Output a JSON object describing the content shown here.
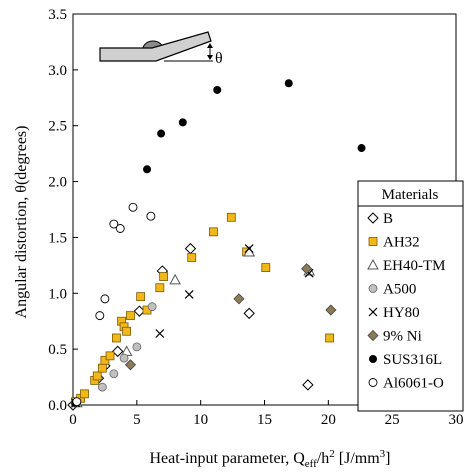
{
  "chart_data": {
    "type": "scatter",
    "title": "",
    "xlabel": {
      "main": "Heat-input parameter, Q",
      "sub": "eff",
      "mid": "/h",
      "sup": "2",
      "unit": " [J/mm",
      "unit_sup": "3",
      "unit_end": "]"
    },
    "ylabel": "Angular distortion, θ(degrees)",
    "xlim": [
      0,
      30
    ],
    "ylim": [
      0,
      3.5
    ],
    "xticks": [
      0,
      5,
      10,
      15,
      20,
      25,
      30
    ],
    "yticks": [
      0.0,
      0.5,
      1.0,
      1.5,
      2.0,
      2.5,
      3.0,
      3.5
    ],
    "xtick_labels": [
      "0",
      "5",
      "10",
      "15",
      "20",
      "25",
      "30"
    ],
    "ytick_labels": [
      "0.0",
      "0.5",
      "1.0",
      "1.5",
      "2.0",
      "2.5",
      "3.0",
      "3.5"
    ],
    "grid": false,
    "legend": {
      "title": "Materials",
      "placement": "right"
    },
    "annotation": {
      "symbol": "θ"
    },
    "series": [
      {
        "name": "B",
        "marker": "diamond-open",
        "color": "#000000",
        "points": [
          [
            0,
            0
          ],
          [
            2.0,
            0.24
          ],
          [
            2.5,
            0.35
          ],
          [
            3.5,
            0.48
          ],
          [
            5.2,
            0.84
          ],
          [
            7.0,
            1.2
          ],
          [
            9.2,
            1.4
          ],
          [
            13.8,
            0.82
          ],
          [
            18.4,
            0.18
          ]
        ]
      },
      {
        "name": "AH32",
        "marker": "square",
        "color": "#f2b81a",
        "points": [
          [
            0.2,
            0.03
          ],
          [
            0.6,
            0.06
          ],
          [
            0.9,
            0.1
          ],
          [
            1.7,
            0.22
          ],
          [
            1.9,
            0.26
          ],
          [
            2.3,
            0.33
          ],
          [
            2.5,
            0.4
          ],
          [
            2.9,
            0.44
          ],
          [
            3.4,
            0.6
          ],
          [
            3.8,
            0.75
          ],
          [
            4.0,
            0.7
          ],
          [
            4.2,
            0.66
          ],
          [
            4.5,
            0.8
          ],
          [
            5.3,
            0.97
          ],
          [
            5.8,
            0.85
          ],
          [
            6.8,
            1.05
          ],
          [
            7.1,
            1.15
          ],
          [
            9.3,
            1.32
          ],
          [
            11.0,
            1.55
          ],
          [
            12.4,
            1.68
          ],
          [
            13.6,
            1.37
          ],
          [
            15.1,
            1.23
          ],
          [
            20.1,
            0.6
          ]
        ]
      },
      {
        "name": "EH40-TM",
        "marker": "triangle-open",
        "color": "#000000",
        "points": [
          [
            0.3,
            0.02
          ],
          [
            4.2,
            0.48
          ],
          [
            8.0,
            1.12
          ],
          [
            13.8,
            1.37
          ],
          [
            18.5,
            1.2
          ]
        ]
      },
      {
        "name": "A500",
        "marker": "circle-gray",
        "color": "#c0c0c0",
        "points": [
          [
            0.3,
            0.02
          ],
          [
            2.3,
            0.16
          ],
          [
            3.2,
            0.28
          ],
          [
            4.0,
            0.42
          ],
          [
            5.0,
            0.52
          ],
          [
            6.2,
            0.88
          ]
        ]
      },
      {
        "name": "HY80",
        "marker": "x",
        "color": "#000000",
        "points": [
          [
            0.2,
            0.02
          ],
          [
            6.8,
            0.64
          ],
          [
            9.1,
            0.99
          ],
          [
            13.8,
            1.4
          ],
          [
            18.5,
            1.18
          ]
        ]
      },
      {
        "name": "9% Ni",
        "marker": "diamond-filled",
        "color": "#8c7b56",
        "points": [
          [
            0.2,
            0.02
          ],
          [
            4.5,
            0.36
          ],
          [
            13.0,
            0.95
          ],
          [
            18.3,
            1.22
          ],
          [
            20.2,
            0.85
          ]
        ]
      },
      {
        "name": "SUS316L",
        "marker": "circle-filled",
        "color": "#000000",
        "points": [
          [
            0.2,
            0.02
          ],
          [
            5.8,
            2.11
          ],
          [
            6.9,
            2.43
          ],
          [
            8.6,
            2.53
          ],
          [
            11.3,
            2.82
          ],
          [
            16.9,
            2.88
          ],
          [
            22.6,
            2.3
          ]
        ]
      },
      {
        "name": "Al6061-O",
        "marker": "circle-open",
        "color": "#000000",
        "points": [
          [
            0.3,
            0.03
          ],
          [
            2.1,
            0.8
          ],
          [
            2.5,
            0.95
          ],
          [
            3.2,
            1.62
          ],
          [
            3.7,
            1.58
          ],
          [
            4.7,
            1.77
          ],
          [
            6.1,
            1.69
          ]
        ]
      }
    ]
  }
}
